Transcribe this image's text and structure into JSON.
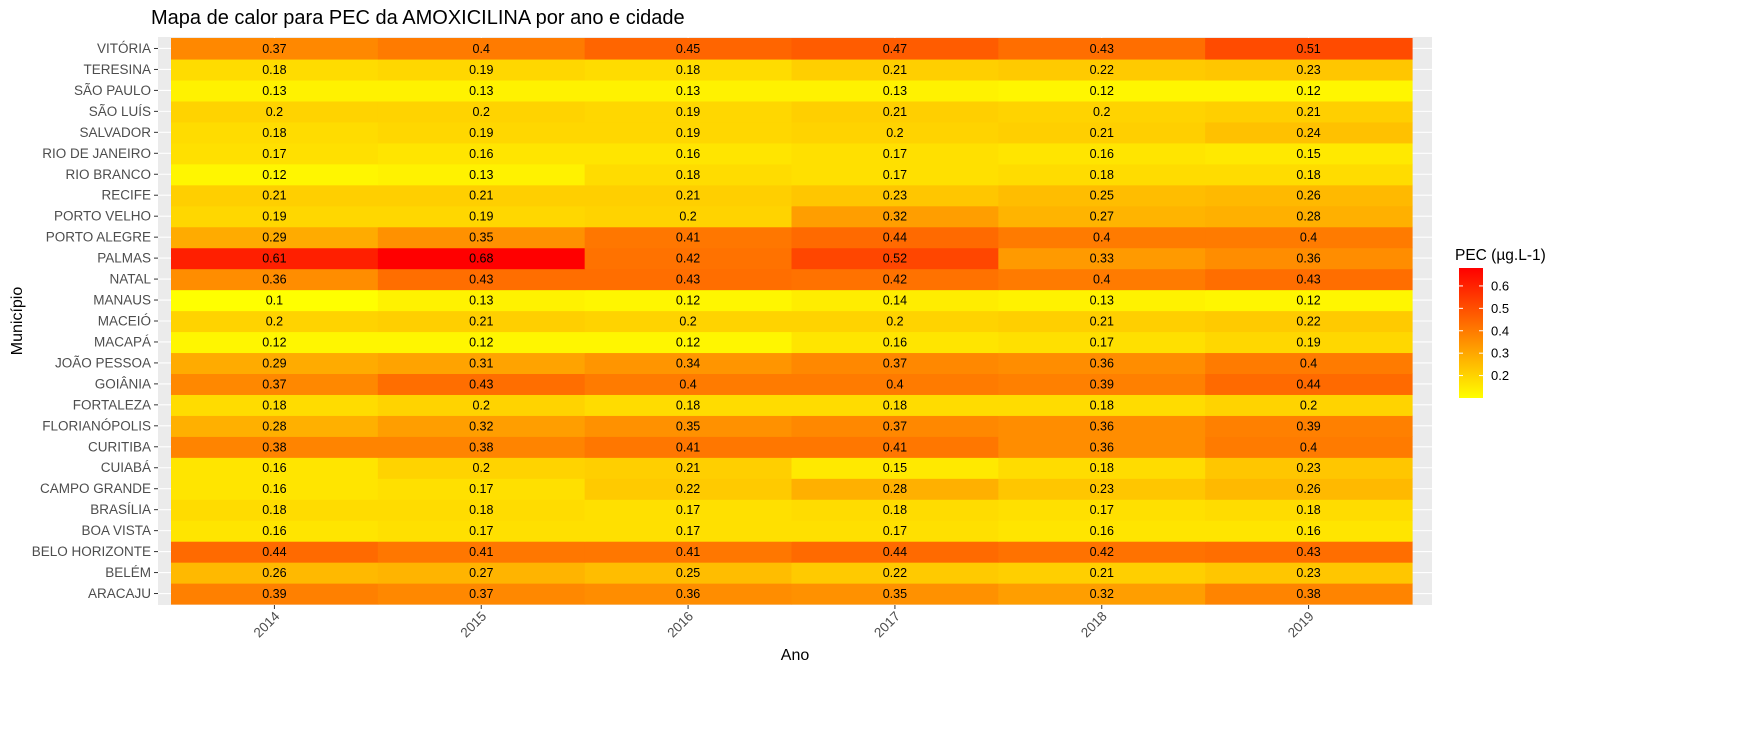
{
  "chart_data": {
    "type": "heatmap",
    "title": "Mapa de calor para PEC da AMOXICILINA por ano e cidade",
    "xlabel": "Ano",
    "ylabel": "Município",
    "x": [
      "2014",
      "2015",
      "2016",
      "2017",
      "2018",
      "2019"
    ],
    "y": [
      "ARACAJU",
      "BELÉM",
      "BELO HORIZONTE",
      "BOA VISTA",
      "BRASÍLIA",
      "CAMPO GRANDE",
      "CUIABÁ",
      "CURITIBA",
      "FLORIANÓPOLIS",
      "FORTALEZA",
      "GOIÂNIA",
      "JOÃO PESSOA",
      "MACAPÁ",
      "MACEIÓ",
      "MANAUS",
      "NATAL",
      "PALMAS",
      "PORTO ALEGRE",
      "PORTO VELHO",
      "RECIFE",
      "RIO BRANCO",
      "RIO DE JANEIRO",
      "SALVADOR",
      "SÃO LUÍS",
      "SÃO PAULO",
      "TERESINA",
      "VITÓRIA"
    ],
    "values": [
      [
        0.39,
        0.37,
        0.36,
        0.35,
        0.32,
        0.38
      ],
      [
        0.26,
        0.27,
        0.25,
        0.22,
        0.21,
        0.23
      ],
      [
        0.44,
        0.41,
        0.41,
        0.44,
        0.42,
        0.43
      ],
      [
        0.16,
        0.17,
        0.17,
        0.17,
        0.16,
        0.16
      ],
      [
        0.18,
        0.18,
        0.17,
        0.18,
        0.17,
        0.18
      ],
      [
        0.16,
        0.17,
        0.22,
        0.28,
        0.23,
        0.26
      ],
      [
        0.16,
        0.2,
        0.21,
        0.15,
        0.18,
        0.23
      ],
      [
        0.38,
        0.38,
        0.41,
        0.41,
        0.36,
        0.4
      ],
      [
        0.28,
        0.32,
        0.35,
        0.37,
        0.36,
        0.39
      ],
      [
        0.18,
        0.2,
        0.18,
        0.18,
        0.18,
        0.2
      ],
      [
        0.37,
        0.43,
        0.4,
        0.4,
        0.39,
        0.44
      ],
      [
        0.29,
        0.31,
        0.34,
        0.37,
        0.36,
        0.4
      ],
      [
        0.12,
        0.12,
        0.12,
        0.16,
        0.17,
        0.19
      ],
      [
        0.2,
        0.21,
        0.2,
        0.2,
        0.21,
        0.22
      ],
      [
        0.1,
        0.13,
        0.12,
        0.14,
        0.13,
        0.12
      ],
      [
        0.36,
        0.43,
        0.43,
        0.42,
        0.4,
        0.43
      ],
      [
        0.61,
        0.68,
        0.42,
        0.52,
        0.33,
        0.36
      ],
      [
        0.29,
        0.35,
        0.41,
        0.44,
        0.4,
        0.4
      ],
      [
        0.19,
        0.19,
        0.2,
        0.32,
        0.27,
        0.28
      ],
      [
        0.21,
        0.21,
        0.21,
        0.23,
        0.25,
        0.26
      ],
      [
        0.12,
        0.13,
        0.18,
        0.17,
        0.18,
        0.18
      ],
      [
        0.17,
        0.16,
        0.16,
        0.17,
        0.16,
        0.15
      ],
      [
        0.18,
        0.19,
        0.19,
        0.2,
        0.21,
        0.24
      ],
      [
        0.2,
        0.2,
        0.19,
        0.21,
        0.2,
        0.21
      ],
      [
        0.13,
        0.13,
        0.13,
        0.13,
        0.12,
        0.12
      ],
      [
        0.18,
        0.19,
        0.18,
        0.21,
        0.22,
        0.23
      ],
      [
        0.37,
        0.4,
        0.45,
        0.47,
        0.43,
        0.51
      ]
    ],
    "color_scale": {
      "low": "#ffff00",
      "high": "#ff0000",
      "range": [
        0.1,
        0.68
      ]
    },
    "legend": {
      "title": "PEC (µg.L-1)",
      "ticks": [
        "0.2",
        "0.3",
        "0.4",
        "0.5",
        "0.6"
      ],
      "placement": "right"
    },
    "panel_background": "#ebebeb",
    "grid": true
  }
}
